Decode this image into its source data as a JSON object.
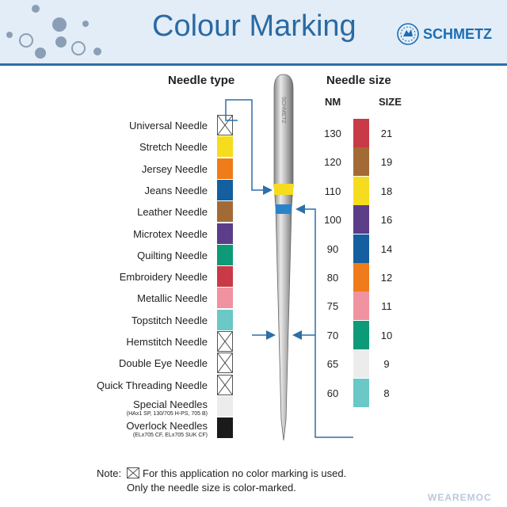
{
  "title": "Colour Marking",
  "brand": "SCHMETZ",
  "needle_type_heading": "Needle type",
  "needle_size_heading": "Needle size",
  "nm_heading": "NM",
  "size_heading": "SIZE",
  "needle_types": [
    {
      "label": "Universal Needle",
      "color": null
    },
    {
      "label": "Stretch Needle",
      "color": "#f6dc1e"
    },
    {
      "label": "Jersey Needle",
      "color": "#ef7b1a"
    },
    {
      "label": "Jeans Needle",
      "color": "#135f9f"
    },
    {
      "label": "Leather Needle",
      "color": "#a46a36"
    },
    {
      "label": "Microtex Needle",
      "color": "#5b3d88"
    },
    {
      "label": "Quilting Needle",
      "color": "#0d9a79"
    },
    {
      "label": "Embroidery Needle",
      "color": "#c83a46"
    },
    {
      "label": "Metallic Needle",
      "color": "#f0929f"
    },
    {
      "label": "Topstitch Needle",
      "color": "#6ac8c6"
    },
    {
      "label": "Hemstitch Needle",
      "color": null
    },
    {
      "label": "Double Eye Needle",
      "color": null
    },
    {
      "label": "Quick Threading Needle",
      "color": null
    },
    {
      "label": "Special Needles",
      "sublabel": "(HAx1 SP, 130/705 H-PS, 705 B)",
      "color": "#ececec"
    },
    {
      "label": "Overlock Needles",
      "sublabel": "(ELx705 CF, ELx705 SUK CF)",
      "color": "#1a1a1a"
    }
  ],
  "sizes": [
    {
      "nm": "130",
      "size": "21",
      "color": "#c83a46"
    },
    {
      "nm": "120",
      "size": "19",
      "color": "#a46a36"
    },
    {
      "nm": "110",
      "size": "18",
      "color": "#f6dc1e"
    },
    {
      "nm": "100",
      "size": "16",
      "color": "#5b3d88"
    },
    {
      "nm": "90",
      "size": "14",
      "color": "#135f9f"
    },
    {
      "nm": "80",
      "size": "12",
      "color": "#ef7b1a"
    },
    {
      "nm": "75",
      "size": "11",
      "color": "#f0929f"
    },
    {
      "nm": "70",
      "size": "10",
      "color": "#0d9a79"
    },
    {
      "nm": "65",
      "size": "9",
      "color": "#ececec"
    },
    {
      "nm": "60",
      "size": "8",
      "color": "#6ac8c6"
    }
  ],
  "note": {
    "prefix": "Note:",
    "line1": "For this application no color marking is used.",
    "line2": "Only the needle size is color-marked."
  },
  "needle_text": "SCHMETZ",
  "watermark": "WEAREMOC",
  "colors": {
    "accent": "#2a6aa3",
    "arrow": "#2d6fa8",
    "header_bg": "#e3edf7"
  }
}
